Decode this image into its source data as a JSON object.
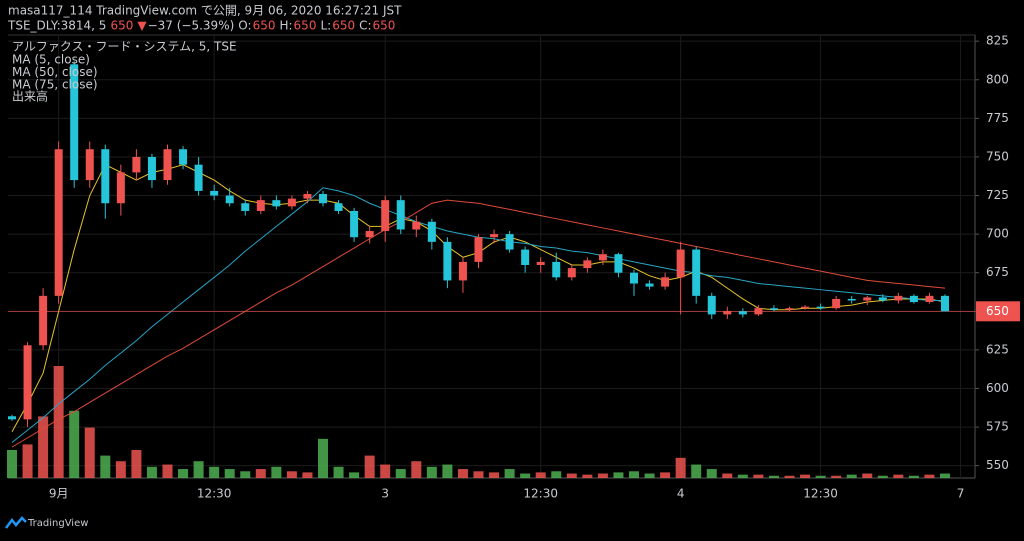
{
  "header": {
    "publisher": "masa117_114 TradingView.com で公開, 9月 06, 2020 16:27:21 JST",
    "symbol": "TSE_DLY:3814, 5",
    "price": 650,
    "arrow": "▼",
    "change": "−37 (−5.39%)",
    "o_label": "O:",
    "open": 650,
    "h_label": "H:",
    "high": 650,
    "l_label": "L:",
    "low": 650,
    "c_label": "C:",
    "close": 650
  },
  "footer": {
    "brand": "TradingView"
  },
  "chart_data": {
    "type": "candlestick",
    "symbol_legend": "アルファクス・フード・システム, 5, TSE",
    "volume_name": "出来高",
    "up_color": "#ef5350",
    "down_color": "#26c6da",
    "volume_up_color": "#ef5350",
    "volume_down_color": "#4caf50",
    "categories": [
      null,
      null,
      null,
      "9月",
      null,
      null,
      null,
      null,
      null,
      null,
      null,
      null,
      null,
      "12:30",
      null,
      null,
      null,
      null,
      null,
      null,
      null,
      null,
      null,
      null,
      "3",
      null,
      null,
      null,
      null,
      null,
      null,
      null,
      null,
      null,
      "12:30",
      null,
      null,
      null,
      null,
      null,
      null,
      null,
      null,
      "4",
      null,
      null,
      null,
      null,
      null,
      null,
      null,
      null,
      "12:30",
      null,
      null,
      null,
      null,
      null,
      null,
      null,
      null,
      "7"
    ],
    "open": [
      582,
      580,
      628,
      660,
      810,
      735,
      755,
      720,
      740,
      750,
      735,
      755,
      745,
      728,
      725,
      720,
      715,
      722,
      718,
      723,
      726,
      720,
      715,
      698,
      702,
      722,
      703,
      708,
      695,
      670,
      682,
      698,
      700,
      690,
      680,
      682,
      672,
      678,
      683,
      687,
      675,
      668,
      666,
      672,
      690,
      660,
      648,
      650,
      648,
      652,
      651,
      652,
      653,
      652,
      658,
      657,
      659,
      657,
      660,
      656,
      660,
      null
    ],
    "high": [
      583,
      630,
      665,
      760,
      812,
      760,
      758,
      745,
      755,
      752,
      758,
      757,
      750,
      732,
      730,
      722,
      725,
      725,
      725,
      728,
      728,
      722,
      717,
      705,
      725,
      725,
      712,
      710,
      698,
      685,
      700,
      703,
      702,
      692,
      685,
      688,
      680,
      685,
      690,
      688,
      677,
      670,
      675,
      695,
      692,
      662,
      653,
      652,
      654,
      654,
      653,
      654,
      655,
      660,
      660,
      660,
      661,
      662,
      661,
      662,
      661,
      null
    ],
    "low": [
      579,
      575,
      625,
      655,
      730,
      730,
      710,
      712,
      735,
      730,
      732,
      742,
      725,
      722,
      718,
      712,
      713,
      716,
      716,
      720,
      718,
      713,
      695,
      694,
      695,
      700,
      698,
      690,
      665,
      662,
      678,
      694,
      688,
      675,
      675,
      670,
      670,
      675,
      680,
      672,
      660,
      664,
      664,
      648,
      655,
      645,
      645,
      646,
      647,
      650,
      650,
      651,
      651,
      651,
      655,
      654,
      656,
      655,
      655,
      655,
      650,
      null
    ],
    "close": [
      580,
      628,
      660,
      755,
      735,
      755,
      720,
      740,
      750,
      735,
      755,
      745,
      728,
      725,
      720,
      715,
      722,
      718,
      723,
      726,
      720,
      715,
      698,
      702,
      722,
      703,
      708,
      695,
      670,
      682,
      698,
      700,
      690,
      680,
      682,
      672,
      678,
      683,
      687,
      675,
      668,
      666,
      672,
      690,
      660,
      648,
      650,
      648,
      652,
      651,
      652,
      653,
      652,
      658,
      657,
      659,
      657,
      660,
      656,
      660,
      650,
      null
    ],
    "volume": [
      25,
      30,
      55,
      100,
      60,
      45,
      20,
      15,
      25,
      10,
      12,
      8,
      15,
      10,
      8,
      6,
      8,
      10,
      6,
      5,
      35,
      10,
      5,
      20,
      12,
      8,
      15,
      10,
      12,
      8,
      6,
      5,
      8,
      4,
      5,
      6,
      4,
      3,
      4,
      5,
      6,
      4,
      5,
      18,
      12,
      8,
      4,
      3,
      3,
      2,
      2,
      3,
      2,
      2,
      3,
      4,
      2,
      3,
      2,
      3,
      4,
      null
    ],
    "volume_ylim": [
      0,
      100
    ],
    "series": [
      {
        "name": "MA (5, close)",
        "color": "#e6c229",
        "values": [
          572,
          590,
          610,
          650,
          690,
          725,
          745,
          740,
          735,
          740,
          742,
          745,
          740,
          735,
          728,
          722,
          720,
          719,
          720,
          722,
          722,
          720,
          712,
          705,
          705,
          710,
          708,
          702,
          692,
          685,
          688,
          695,
          698,
          695,
          690,
          685,
          680,
          680,
          682,
          682,
          678,
          673,
          670,
          672,
          676,
          672,
          665,
          658,
          652,
          651,
          651,
          652,
          652,
          653,
          654,
          656,
          657,
          658,
          658,
          658,
          656,
          null
        ]
      },
      {
        "name": "MA (50, close)",
        "color": "#26a6c4",
        "values": [
          565,
          573,
          581,
          590,
          598,
          606,
          615,
          623,
          631,
          640,
          648,
          656,
          664,
          672,
          680,
          689,
          697,
          705,
          713,
          721,
          730,
          728,
          725,
          720,
          716,
          712,
          708,
          705,
          702,
          700,
          698,
          697,
          695,
          694,
          692,
          691,
          689,
          688,
          686,
          684,
          682,
          680,
          678,
          676,
          675,
          673,
          672,
          670,
          668,
          667,
          666,
          665,
          664,
          663,
          662,
          661,
          660,
          659,
          658,
          657,
          657,
          null
        ]
      },
      {
        "name": "MA (75, close)",
        "color": "#e04a3a",
        "values": [
          562,
          568,
          574,
          580,
          585,
          591,
          597,
          603,
          609,
          615,
          621,
          626,
          632,
          638,
          644,
          650,
          656,
          662,
          667,
          673,
          679,
          685,
          691,
          697,
          703,
          708,
          714,
          720,
          722,
          721,
          720,
          718,
          716,
          714,
          712,
          710,
          708,
          706,
          704,
          702,
          700,
          698,
          696,
          694,
          692,
          690,
          688,
          686,
          684,
          682,
          680,
          678,
          676,
          674,
          672,
          670,
          669,
          668,
          667,
          666,
          665,
          null
        ]
      }
    ],
    "last_price": 650,
    "ylim": [
      542,
      829
    ],
    "yticks": [
      550,
      575,
      600,
      625,
      650,
      675,
      700,
      725,
      750,
      775,
      800,
      825
    ],
    "grid": true
  }
}
